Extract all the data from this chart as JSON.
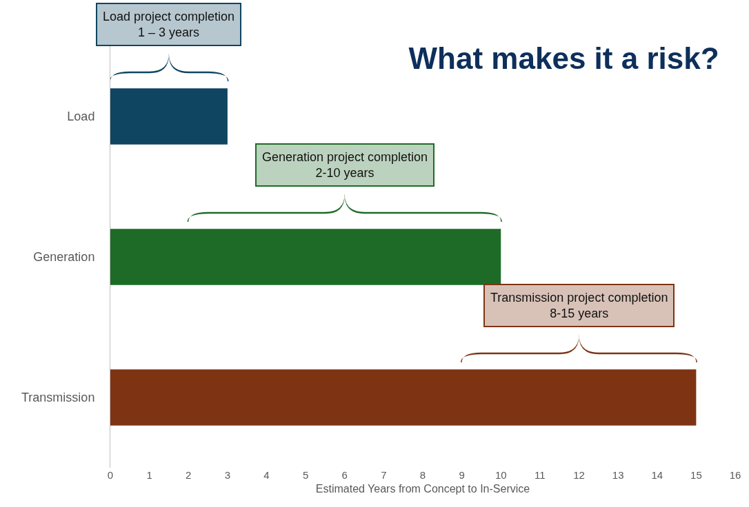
{
  "chart_data": {
    "type": "bar",
    "orientation": "horizontal",
    "title": "What makes it a risk?",
    "categories": [
      "Load",
      "Generation",
      "Transmission"
    ],
    "values": [
      3,
      10,
      15
    ],
    "colors": [
      "#0f4561",
      "#1e6b28",
      "#7e3413"
    ],
    "xlabel": "Estimated Years from Concept to In-Service",
    "xlim": [
      0,
      16
    ],
    "xticks": [
      0,
      1,
      2,
      3,
      4,
      5,
      6,
      7,
      8,
      9,
      10,
      11,
      12,
      13,
      14,
      15,
      16
    ],
    "grid": false,
    "legend": false,
    "annotations": [
      "Load project completion\n1 – 3 years",
      "Generation project completion\n2-10 years",
      "Transmission project completion\n8-15 years"
    ]
  }
}
